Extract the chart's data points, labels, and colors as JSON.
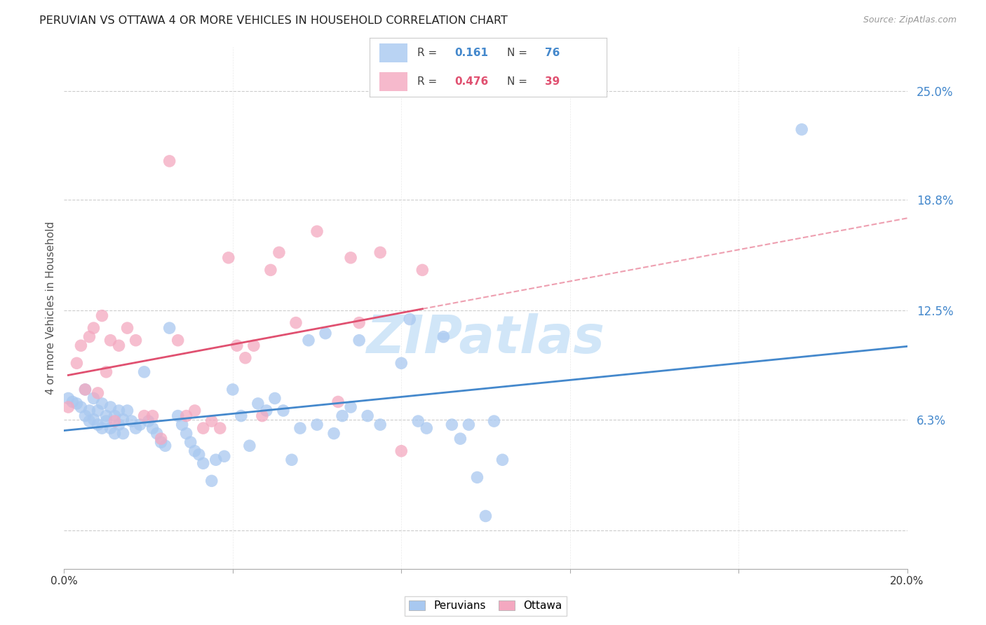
{
  "title": "PERUVIAN VS OTTAWA 4 OR MORE VEHICLES IN HOUSEHOLD CORRELATION CHART",
  "source": "Source: ZipAtlas.com",
  "ylabel": "4 or more Vehicles in Household",
  "xlim": [
    0.0,
    0.2
  ],
  "ylim": [
    -0.022,
    0.275
  ],
  "ytick_positions": [
    0.0,
    0.063,
    0.125,
    0.188,
    0.25
  ],
  "ytick_labels": [
    "",
    "6.3%",
    "12.5%",
    "18.8%",
    "25.0%"
  ],
  "watermark": "ZIPatlas",
  "R_peruvian": 0.161,
  "N_peruvian": 76,
  "R_ottawa": 0.476,
  "N_ottawa": 39,
  "peruvian_color": "#A8C8F0",
  "ottawa_color": "#F4A8C0",
  "peruvian_line_color": "#4488CC",
  "ottawa_line_color": "#E05070",
  "background_color": "#FFFFFF",
  "grid_color": "#CCCCCC",
  "title_color": "#222222",
  "axis_label_color": "#555555",
  "right_tick_color": "#4488CC",
  "peruvian_scatter": [
    [
      0.001,
      0.075
    ],
    [
      0.002,
      0.073
    ],
    [
      0.003,
      0.072
    ],
    [
      0.004,
      0.07
    ],
    [
      0.005,
      0.065
    ],
    [
      0.005,
      0.08
    ],
    [
      0.006,
      0.068
    ],
    [
      0.006,
      0.062
    ],
    [
      0.007,
      0.075
    ],
    [
      0.007,
      0.063
    ],
    [
      0.008,
      0.068
    ],
    [
      0.008,
      0.06
    ],
    [
      0.009,
      0.072
    ],
    [
      0.009,
      0.058
    ],
    [
      0.01,
      0.065
    ],
    [
      0.01,
      0.062
    ],
    [
      0.011,
      0.07
    ],
    [
      0.011,
      0.058
    ],
    [
      0.012,
      0.065
    ],
    [
      0.012,
      0.055
    ],
    [
      0.013,
      0.068
    ],
    [
      0.013,
      0.06
    ],
    [
      0.014,
      0.063
    ],
    [
      0.014,
      0.055
    ],
    [
      0.015,
      0.068
    ],
    [
      0.016,
      0.062
    ],
    [
      0.017,
      0.058
    ],
    [
      0.018,
      0.06
    ],
    [
      0.019,
      0.09
    ],
    [
      0.02,
      0.062
    ],
    [
      0.021,
      0.058
    ],
    [
      0.022,
      0.055
    ],
    [
      0.023,
      0.05
    ],
    [
      0.024,
      0.048
    ],
    [
      0.025,
      0.115
    ],
    [
      0.027,
      0.065
    ],
    [
      0.028,
      0.06
    ],
    [
      0.029,
      0.055
    ],
    [
      0.03,
      0.05
    ],
    [
      0.031,
      0.045
    ],
    [
      0.032,
      0.043
    ],
    [
      0.033,
      0.038
    ],
    [
      0.035,
      0.028
    ],
    [
      0.036,
      0.04
    ],
    [
      0.038,
      0.042
    ],
    [
      0.04,
      0.08
    ],
    [
      0.042,
      0.065
    ],
    [
      0.044,
      0.048
    ],
    [
      0.046,
      0.072
    ],
    [
      0.048,
      0.068
    ],
    [
      0.05,
      0.075
    ],
    [
      0.052,
      0.068
    ],
    [
      0.054,
      0.04
    ],
    [
      0.056,
      0.058
    ],
    [
      0.058,
      0.108
    ],
    [
      0.06,
      0.06
    ],
    [
      0.062,
      0.112
    ],
    [
      0.064,
      0.055
    ],
    [
      0.066,
      0.065
    ],
    [
      0.068,
      0.07
    ],
    [
      0.07,
      0.108
    ],
    [
      0.072,
      0.065
    ],
    [
      0.075,
      0.06
    ],
    [
      0.08,
      0.095
    ],
    [
      0.082,
      0.12
    ],
    [
      0.084,
      0.062
    ],
    [
      0.086,
      0.058
    ],
    [
      0.09,
      0.11
    ],
    [
      0.092,
      0.06
    ],
    [
      0.094,
      0.052
    ],
    [
      0.096,
      0.06
    ],
    [
      0.098,
      0.03
    ],
    [
      0.1,
      0.008
    ],
    [
      0.102,
      0.062
    ],
    [
      0.104,
      0.04
    ],
    [
      0.175,
      0.228
    ]
  ],
  "ottawa_scatter": [
    [
      0.001,
      0.07
    ],
    [
      0.003,
      0.095
    ],
    [
      0.004,
      0.105
    ],
    [
      0.005,
      0.08
    ],
    [
      0.006,
      0.11
    ],
    [
      0.007,
      0.115
    ],
    [
      0.008,
      0.078
    ],
    [
      0.009,
      0.122
    ],
    [
      0.01,
      0.09
    ],
    [
      0.011,
      0.108
    ],
    [
      0.012,
      0.062
    ],
    [
      0.013,
      0.105
    ],
    [
      0.015,
      0.115
    ],
    [
      0.017,
      0.108
    ],
    [
      0.019,
      0.065
    ],
    [
      0.021,
      0.065
    ],
    [
      0.023,
      0.052
    ],
    [
      0.025,
      0.21
    ],
    [
      0.027,
      0.108
    ],
    [
      0.029,
      0.065
    ],
    [
      0.031,
      0.068
    ],
    [
      0.033,
      0.058
    ],
    [
      0.035,
      0.062
    ],
    [
      0.037,
      0.058
    ],
    [
      0.039,
      0.155
    ],
    [
      0.041,
      0.105
    ],
    [
      0.043,
      0.098
    ],
    [
      0.045,
      0.105
    ],
    [
      0.047,
      0.065
    ],
    [
      0.049,
      0.148
    ],
    [
      0.051,
      0.158
    ],
    [
      0.055,
      0.118
    ],
    [
      0.06,
      0.17
    ],
    [
      0.065,
      0.073
    ],
    [
      0.068,
      0.155
    ],
    [
      0.07,
      0.118
    ],
    [
      0.075,
      0.158
    ],
    [
      0.08,
      0.045
    ],
    [
      0.085,
      0.148
    ]
  ]
}
